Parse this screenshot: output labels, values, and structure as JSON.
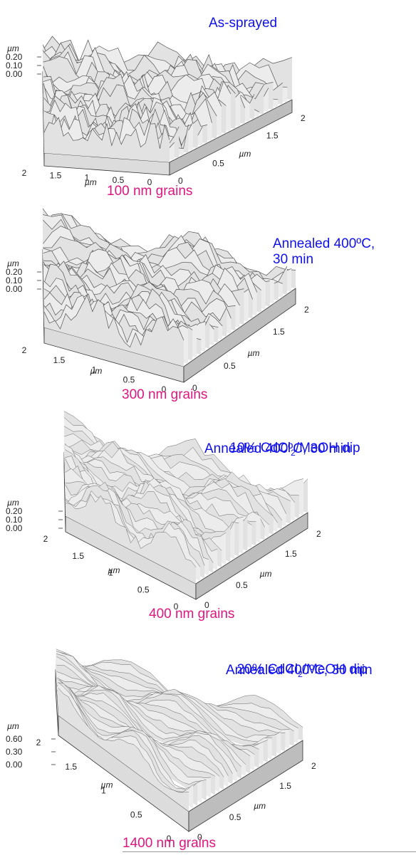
{
  "panels": [
    {
      "condition": "As-sprayed",
      "grain_label": "100 nm grains",
      "z_unit": "µm",
      "z_ticks": [
        "0.20",
        "0.10",
        "0.00"
      ],
      "left_axis_unit": "µm",
      "left_axis_ticks": [
        "2",
        "1.5",
        "1",
        "0.5",
        "0"
      ],
      "right_axis_unit": "µm",
      "right_axis_ticks": [
        "0",
        "0.5",
        "1.5",
        "2"
      ]
    },
    {
      "condition": "Annealed 400ºC,\n30 min",
      "grain_label": "300 nm grains",
      "z_unit": "µm",
      "z_ticks": [
        "0.20",
        "0.10",
        "0.00"
      ],
      "left_axis_unit": "µm",
      "left_axis_ticks": [
        "2",
        "1.5",
        "1",
        "0.5",
        "0"
      ],
      "right_axis_unit": "µm",
      "right_axis_ticks": [
        "0",
        "0.5",
        "1.5",
        "2"
      ]
    },
    {
      "condition_line1_pre": "10% CdCl",
      "condition_sub": "2",
      "condition_line1_post": "/MeOH dip",
      "condition_line2": "Annealed 400ºC, 30 min",
      "grain_label": "400 nm grains",
      "z_unit": "µm",
      "z_ticks": [
        "0.20",
        "0.10",
        "0.00"
      ],
      "left_axis_unit": "µm",
      "left_axis_ticks": [
        "2",
        "1.5",
        "1",
        "0.5",
        "0"
      ],
      "right_axis_unit": "µm",
      "right_axis_ticks": [
        "0",
        "0.5",
        "1.5",
        "2"
      ]
    },
    {
      "condition_line1_pre": "20% CdCl",
      "condition_sub": "2",
      "condition_line1_post": "/MeOH dip",
      "condition_line2": "Annealed 400ºC, 30 min",
      "grain_label": "1400 nm grains",
      "z_unit": "µm",
      "z_ticks": [
        "0.60",
        "0.30",
        "0.00"
      ],
      "left_axis_unit": "µm",
      "left_axis_ticks": [
        "2",
        "1.5",
        "1",
        "0.5",
        "0"
      ],
      "right_axis_unit": "µm",
      "right_axis_ticks": [
        "0",
        "0.5",
        "1.5",
        "2"
      ]
    }
  ],
  "colors": {
    "condition_text": "#1010ee",
    "grain_text": "#e0157e",
    "surface_fill": "#e6e6e6",
    "surface_line": "#444444"
  }
}
